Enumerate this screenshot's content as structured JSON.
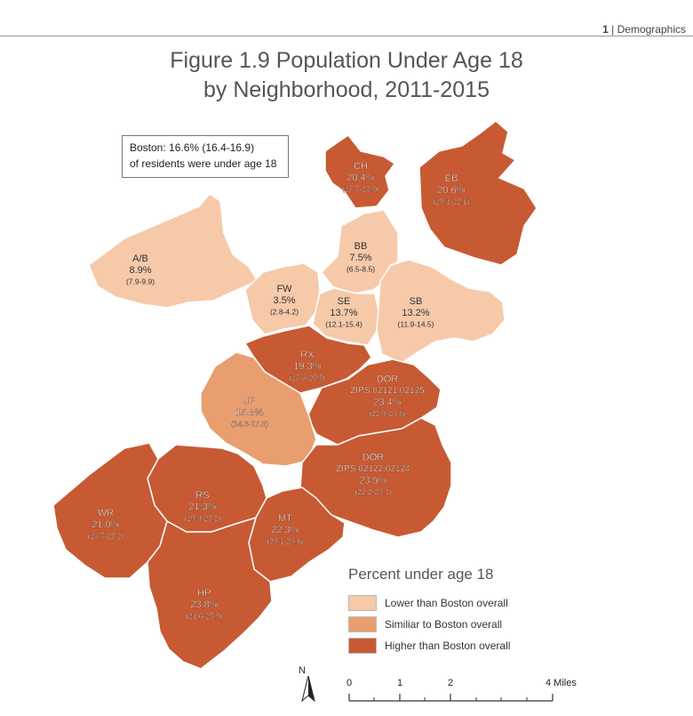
{
  "header": {
    "page_number": "1",
    "section": "| Demographics"
  },
  "title": {
    "line1": "Figure 1.9 Population Under Age 18",
    "line2": "by Neighborhood, 2011-2015"
  },
  "callout": {
    "line1": "Boston: 16.6% (16.4-16.9)",
    "line2": "of residents were under age 18"
  },
  "colors": {
    "lower": "#f6c9a9",
    "similar": "#e89e6e",
    "higher": "#c75a33",
    "border": "#ffffff"
  },
  "neighborhoods": [
    {
      "code": "CH",
      "value": "20.4%",
      "ci": "(17.7-23.0)",
      "category": "higher"
    },
    {
      "code": "EB",
      "value": "20.6%",
      "ci": "(19.1-22.1)",
      "category": "higher"
    },
    {
      "code": "BB",
      "value": "7.5%",
      "ci": "(6.5-8.5)",
      "category": "lower"
    },
    {
      "code": "A/B",
      "value": "8.9%",
      "ci": "(7.9-9.9)",
      "category": "lower"
    },
    {
      "code": "FW",
      "value": "3.5%",
      "ci": "(2.8-4.2)",
      "category": "lower"
    },
    {
      "code": "SE",
      "value": "13.7%",
      "ci": "(12.1-15.4)",
      "category": "lower"
    },
    {
      "code": "SB",
      "value": "13.2%",
      "ci": "(11.9-14.5)",
      "category": "lower"
    },
    {
      "code": "RX",
      "value": "19.3%",
      "ci": "(17.8-20.9)",
      "category": "higher"
    },
    {
      "code": "DOR",
      "zips": "ZIPS 02121,02125",
      "value": "23.4%",
      "ci": "(22.0-24.8)",
      "category": "higher"
    },
    {
      "code": "JP",
      "value": "15.8%",
      "ci": "(14.3-17.3)",
      "category": "similar"
    },
    {
      "code": "DOR",
      "zips": "ZIPS 02122,02124",
      "value": "23.5%",
      "ci": "(22.2-24.7)",
      "category": "higher"
    },
    {
      "code": "RS",
      "value": "21.3%",
      "ci": "(19.4-23.2)",
      "category": "higher"
    },
    {
      "code": "WR",
      "value": "21.0%",
      "ci": "(18.7-23.2)",
      "category": "higher"
    },
    {
      "code": "MT",
      "value": "22.3%",
      "ci": "(20.1-24.6)",
      "category": "higher"
    },
    {
      "code": "HP",
      "value": "23.8%",
      "ci": "(21.6-25.9)",
      "category": "higher"
    }
  ],
  "legend": {
    "title": "Percent under age 18",
    "items": [
      {
        "label": "Lower than Boston overall",
        "category": "lower"
      },
      {
        "label": "Similiar to Boston overall",
        "category": "similar"
      },
      {
        "label": "Higher than Boston overall",
        "category": "higher"
      }
    ]
  },
  "north_label": "N",
  "scale": {
    "ticks": [
      "0",
      "1",
      "2",
      "4 Miles"
    ]
  }
}
